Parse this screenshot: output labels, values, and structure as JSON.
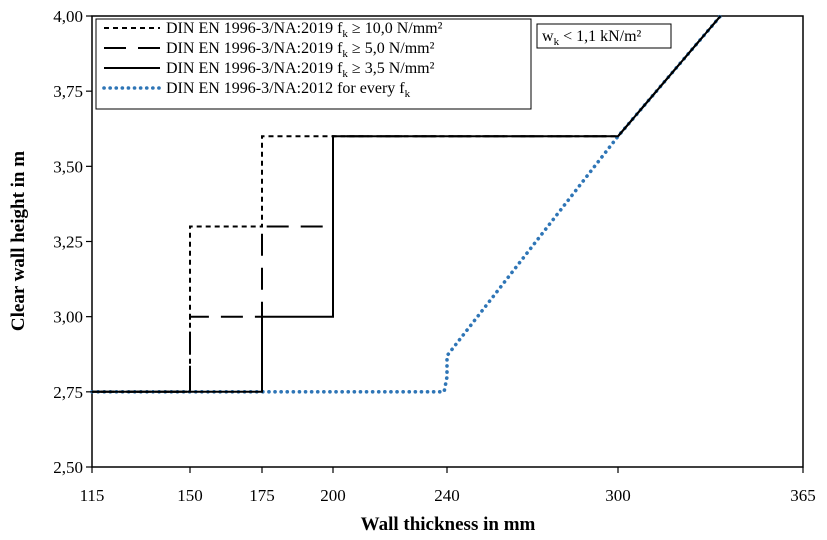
{
  "chart_data": {
    "type": "line",
    "xlabel": "Wall thickness in mm",
    "ylabel": "Clear wall height in m",
    "xlim": [
      115,
      365
    ],
    "ylim": [
      2.5,
      4.0
    ],
    "x_ticks": [
      115,
      150,
      175,
      200,
      240,
      300,
      365
    ],
    "x_tick_labels": [
      "115",
      "150",
      "175",
      "200",
      "240",
      "300",
      "365"
    ],
    "y_ticks": [
      2.5,
      2.75,
      3.0,
      3.25,
      3.5,
      3.75,
      4.0
    ],
    "y_tick_labels": [
      "2,50",
      "2,75",
      "3,00",
      "3,25",
      "3,50",
      "3,75",
      "4,00"
    ],
    "grid": false,
    "legend_position": "top-left",
    "annotation": {
      "main": "w",
      "sub": "k",
      "rest": " < 1,1 kN/m²"
    },
    "series": [
      {
        "legend": {
          "main": "DIN EN 1996-3/NA:2019 f",
          "sub": "k",
          "rest": " ≥ 10,0 N/mm²"
        },
        "style": "short-dash",
        "color": "#000000",
        "x": [
          115,
          150,
          150,
          175,
          175,
          300,
          336
        ],
        "y": [
          2.75,
          2.75,
          3.3,
          3.3,
          3.6,
          3.6,
          4.0
        ]
      },
      {
        "legend": {
          "main": "DIN EN 1996-3/NA:2019 f",
          "sub": "k",
          "rest": " ≥ 5,0 N/mm²"
        },
        "style": "long-dash",
        "color": "#000000",
        "x": [
          115,
          150,
          150,
          175,
          175,
          200,
          200,
          300,
          336
        ],
        "y": [
          2.75,
          2.75,
          3.0,
          3.0,
          3.3,
          3.3,
          3.6,
          3.6,
          4.0
        ]
      },
      {
        "legend": {
          "main": "DIN EN 1996-3/NA:2019 f",
          "sub": "k",
          "rest": " ≥ 3,5 N/mm²"
        },
        "style": "solid",
        "color": "#000000",
        "x": [
          115,
          175,
          175,
          200,
          200,
          300,
          336
        ],
        "y": [
          2.75,
          2.75,
          3.0,
          3.0,
          3.6,
          3.6,
          4.0
        ]
      },
      {
        "legend": {
          "main": "DIN EN 1996-3/NA:2012 for every f",
          "sub": "k",
          "rest": ""
        },
        "style": "dotted",
        "color": "#2e75b6",
        "x": [
          115,
          239,
          240,
          240,
          300,
          336
        ],
        "y": [
          2.75,
          2.75,
          2.8,
          2.87,
          3.6,
          4.0
        ]
      }
    ]
  }
}
